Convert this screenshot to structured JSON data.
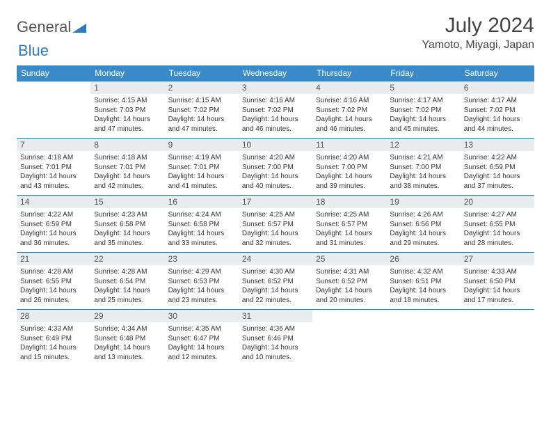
{
  "brand": {
    "part1": "General",
    "part2": "Blue"
  },
  "title": "July 2024",
  "location": "Yamoto, Miyagi, Japan",
  "weekdays": [
    "Sunday",
    "Monday",
    "Tuesday",
    "Wednesday",
    "Thursday",
    "Friday",
    "Saturday"
  ],
  "colors": {
    "header_bg": "#3a8ac9",
    "header_text": "#ffffff",
    "daynum_bg": "#e9ecef",
    "row_border": "#2b6fa8",
    "logo_blue": "#2b7bbf"
  },
  "cells": [
    {
      "n": "",
      "sr": "",
      "ss": "",
      "dh": "",
      "dm": ""
    },
    {
      "n": "1",
      "sr": "4:15 AM",
      "ss": "7:03 PM",
      "dh": "14",
      "dm": "47"
    },
    {
      "n": "2",
      "sr": "4:15 AM",
      "ss": "7:02 PM",
      "dh": "14",
      "dm": "47"
    },
    {
      "n": "3",
      "sr": "4:16 AM",
      "ss": "7:02 PM",
      "dh": "14",
      "dm": "46"
    },
    {
      "n": "4",
      "sr": "4:16 AM",
      "ss": "7:02 PM",
      "dh": "14",
      "dm": "46"
    },
    {
      "n": "5",
      "sr": "4:17 AM",
      "ss": "7:02 PM",
      "dh": "14",
      "dm": "45"
    },
    {
      "n": "6",
      "sr": "4:17 AM",
      "ss": "7:02 PM",
      "dh": "14",
      "dm": "44"
    },
    {
      "n": "7",
      "sr": "4:18 AM",
      "ss": "7:01 PM",
      "dh": "14",
      "dm": "43"
    },
    {
      "n": "8",
      "sr": "4:18 AM",
      "ss": "7:01 PM",
      "dh": "14",
      "dm": "42"
    },
    {
      "n": "9",
      "sr": "4:19 AM",
      "ss": "7:01 PM",
      "dh": "14",
      "dm": "41"
    },
    {
      "n": "10",
      "sr": "4:20 AM",
      "ss": "7:00 PM",
      "dh": "14",
      "dm": "40"
    },
    {
      "n": "11",
      "sr": "4:20 AM",
      "ss": "7:00 PM",
      "dh": "14",
      "dm": "39"
    },
    {
      "n": "12",
      "sr": "4:21 AM",
      "ss": "7:00 PM",
      "dh": "14",
      "dm": "38"
    },
    {
      "n": "13",
      "sr": "4:22 AM",
      "ss": "6:59 PM",
      "dh": "14",
      "dm": "37"
    },
    {
      "n": "14",
      "sr": "4:22 AM",
      "ss": "6:59 PM",
      "dh": "14",
      "dm": "36"
    },
    {
      "n": "15",
      "sr": "4:23 AM",
      "ss": "6:58 PM",
      "dh": "14",
      "dm": "35"
    },
    {
      "n": "16",
      "sr": "4:24 AM",
      "ss": "6:58 PM",
      "dh": "14",
      "dm": "33"
    },
    {
      "n": "17",
      "sr": "4:25 AM",
      "ss": "6:57 PM",
      "dh": "14",
      "dm": "32"
    },
    {
      "n": "18",
      "sr": "4:25 AM",
      "ss": "6:57 PM",
      "dh": "14",
      "dm": "31"
    },
    {
      "n": "19",
      "sr": "4:26 AM",
      "ss": "6:56 PM",
      "dh": "14",
      "dm": "29"
    },
    {
      "n": "20",
      "sr": "4:27 AM",
      "ss": "6:55 PM",
      "dh": "14",
      "dm": "28"
    },
    {
      "n": "21",
      "sr": "4:28 AM",
      "ss": "6:55 PM",
      "dh": "14",
      "dm": "26"
    },
    {
      "n": "22",
      "sr": "4:28 AM",
      "ss": "6:54 PM",
      "dh": "14",
      "dm": "25"
    },
    {
      "n": "23",
      "sr": "4:29 AM",
      "ss": "6:53 PM",
      "dh": "14",
      "dm": "23"
    },
    {
      "n": "24",
      "sr": "4:30 AM",
      "ss": "6:52 PM",
      "dh": "14",
      "dm": "22"
    },
    {
      "n": "25",
      "sr": "4:31 AM",
      "ss": "6:52 PM",
      "dh": "14",
      "dm": "20"
    },
    {
      "n": "26",
      "sr": "4:32 AM",
      "ss": "6:51 PM",
      "dh": "14",
      "dm": "18"
    },
    {
      "n": "27",
      "sr": "4:33 AM",
      "ss": "6:50 PM",
      "dh": "14",
      "dm": "17"
    },
    {
      "n": "28",
      "sr": "4:33 AM",
      "ss": "6:49 PM",
      "dh": "14",
      "dm": "15"
    },
    {
      "n": "29",
      "sr": "4:34 AM",
      "ss": "6:48 PM",
      "dh": "14",
      "dm": "13"
    },
    {
      "n": "30",
      "sr": "4:35 AM",
      "ss": "6:47 PM",
      "dh": "14",
      "dm": "12"
    },
    {
      "n": "31",
      "sr": "4:36 AM",
      "ss": "6:46 PM",
      "dh": "14",
      "dm": "10"
    },
    {
      "n": "",
      "sr": "",
      "ss": "",
      "dh": "",
      "dm": ""
    },
    {
      "n": "",
      "sr": "",
      "ss": "",
      "dh": "",
      "dm": ""
    },
    {
      "n": "",
      "sr": "",
      "ss": "",
      "dh": "",
      "dm": ""
    }
  ],
  "labels": {
    "sunrise": "Sunrise:",
    "sunset": "Sunset:",
    "daylight": "Daylight:",
    "hours": "hours",
    "and": "and",
    "minutes": "minutes."
  }
}
